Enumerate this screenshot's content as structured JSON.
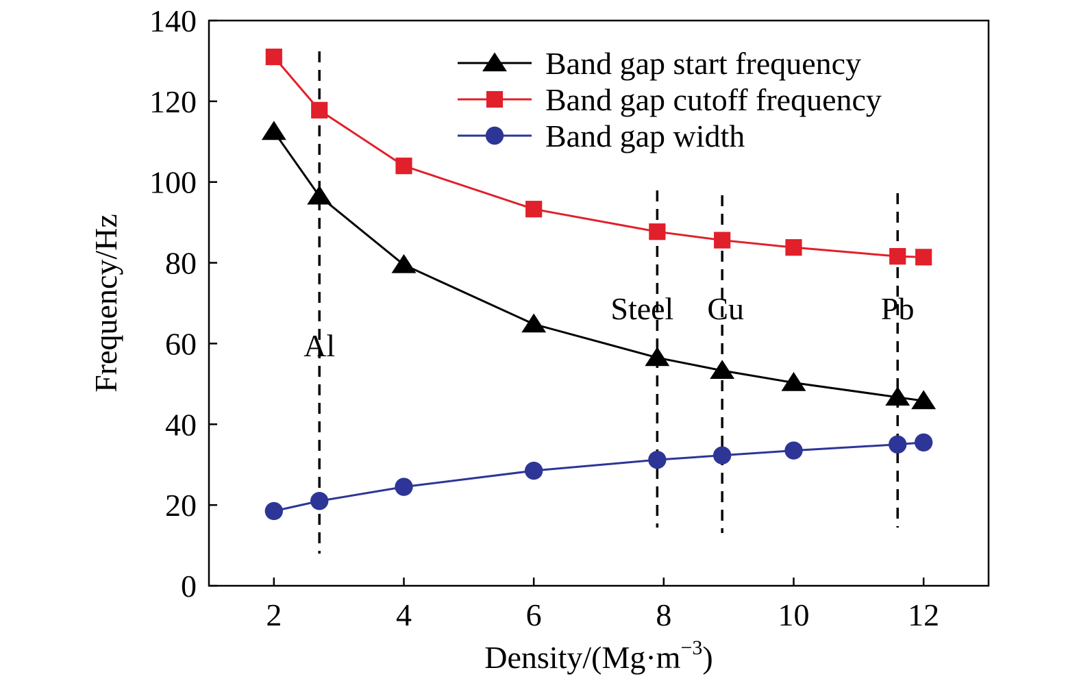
{
  "chart_data": {
    "type": "line",
    "title": "",
    "xlabel": "Density/(Mg·m",
    "xlabel_sup": "−3",
    "xlabel_tail": ")",
    "ylabel": "Frequency/Hz",
    "xlim": [
      1,
      13
    ],
    "ylim": [
      0,
      140
    ],
    "xticks": [
      2,
      4,
      6,
      8,
      10,
      12
    ],
    "yticks": [
      0,
      20,
      40,
      60,
      80,
      100,
      120,
      140
    ],
    "grid": false,
    "legend_position": "top-right",
    "x": [
      2,
      2.7,
      4,
      6,
      7.9,
      8.9,
      10,
      11.6,
      12
    ],
    "series": [
      {
        "name": "Band gap start frequency",
        "color": "#000000",
        "marker": "triangle",
        "values": [
          112.5,
          96.5,
          79.5,
          64.8,
          56.5,
          53.3,
          50.3,
          46.7,
          45.8
        ]
      },
      {
        "name": "Band gap cutoff frequency",
        "color": "#e0202a",
        "marker": "square",
        "values": [
          131,
          117.8,
          104,
          93.3,
          87.7,
          85.6,
          83.8,
          81.6,
          81.4
        ]
      },
      {
        "name": "Band gap width",
        "color": "#2d3596",
        "marker": "circle",
        "values": [
          18.5,
          21,
          24.5,
          28.5,
          31.2,
          32.3,
          33.5,
          35,
          35.5
        ]
      }
    ],
    "annotations": [
      {
        "text": "Al",
        "x": 2.7
      },
      {
        "text": "Steel",
        "x": 7.9
      },
      {
        "text": "Cu",
        "x": 8.9
      },
      {
        "text": "Pb",
        "x": 11.6
      }
    ]
  }
}
